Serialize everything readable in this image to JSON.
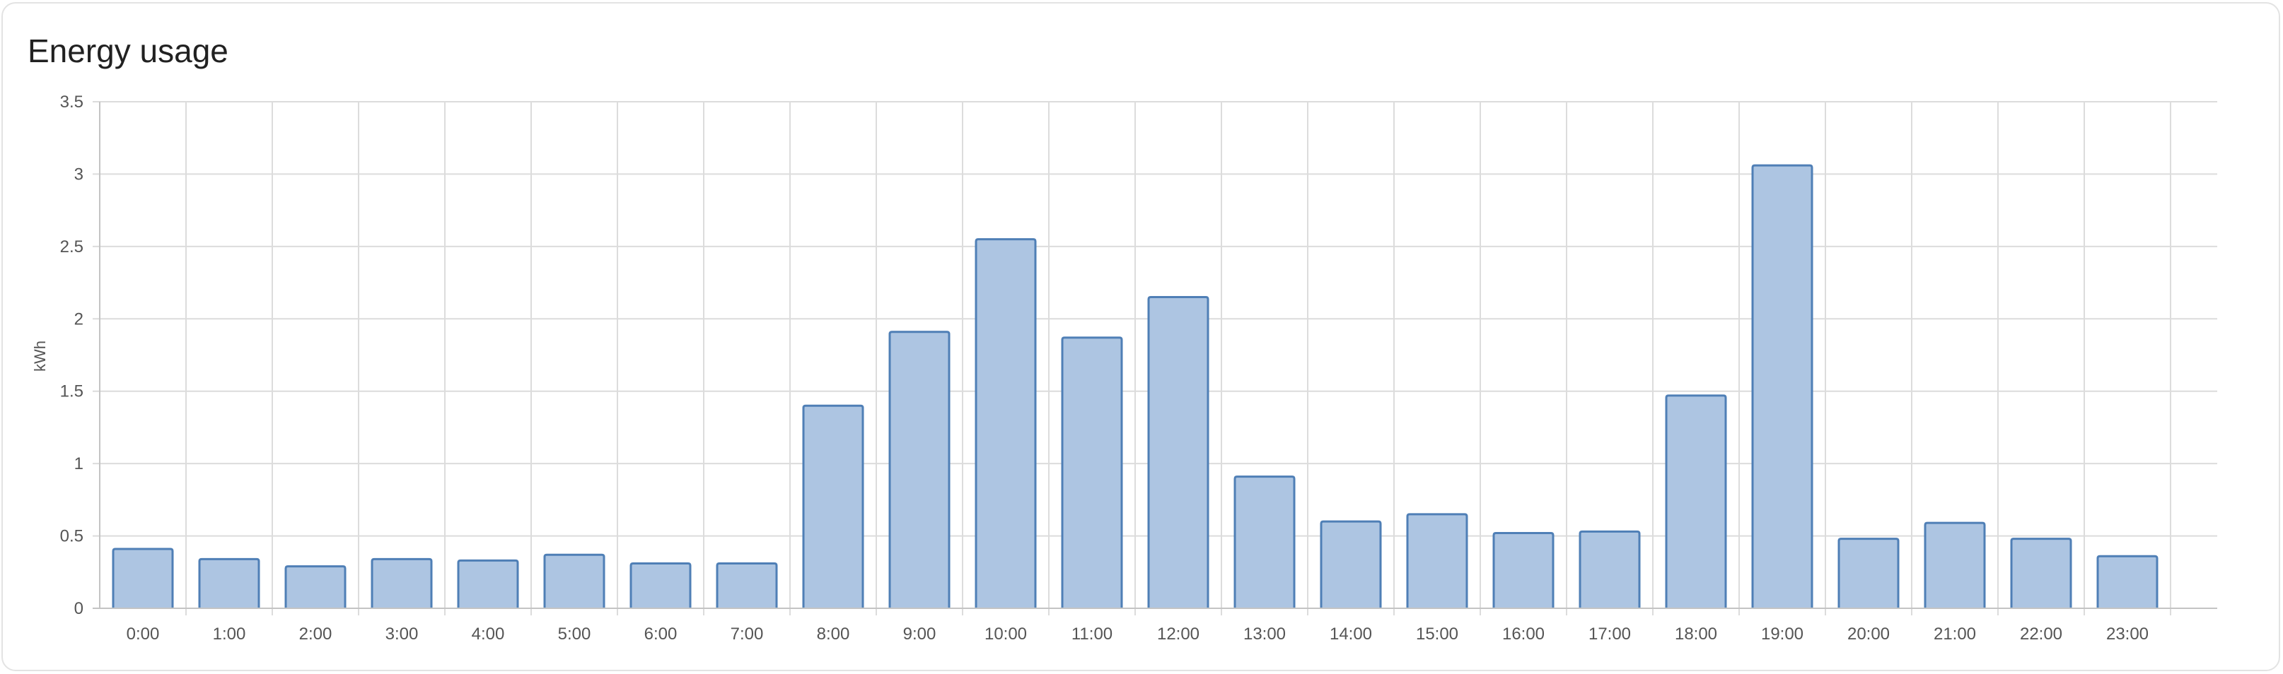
{
  "card": {
    "title": "Energy usage"
  },
  "chart_data": {
    "type": "bar",
    "title": "Energy usage",
    "ylabel": "kWh",
    "xlabel": "",
    "ylim": [
      0,
      3.5
    ],
    "yticks": [
      "0",
      "0.5",
      "1",
      "1.5",
      "2",
      "2.5",
      "3",
      "3.5"
    ],
    "categories": [
      "0:00",
      "1:00",
      "2:00",
      "3:00",
      "4:00",
      "5:00",
      "6:00",
      "7:00",
      "8:00",
      "9:00",
      "10:00",
      "11:00",
      "12:00",
      "13:00",
      "14:00",
      "15:00",
      "16:00",
      "17:00",
      "18:00",
      "19:00",
      "20:00",
      "21:00",
      "22:00",
      "23:00"
    ],
    "values": [
      0.41,
      0.34,
      0.29,
      0.34,
      0.33,
      0.37,
      0.31,
      0.31,
      1.4,
      1.91,
      2.55,
      1.87,
      2.15,
      0.91,
      0.6,
      0.65,
      0.52,
      0.53,
      1.47,
      3.06,
      0.48,
      0.59,
      0.48,
      0.36
    ],
    "grid": true,
    "legend": "none",
    "colors": {
      "bar_fill": "#adc5e2",
      "bar_stroke": "#4f7fb6"
    }
  }
}
